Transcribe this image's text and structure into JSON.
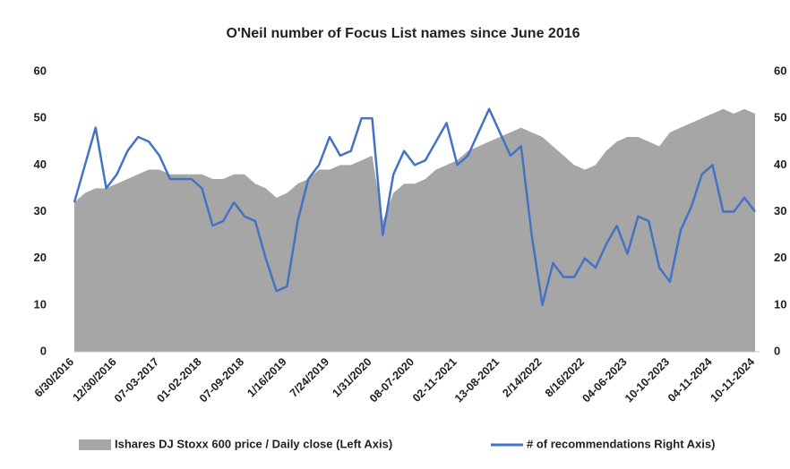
{
  "chart_data": {
    "type": "area-line",
    "title": "O'Neil number of Focus List names since June 2016",
    "categories": [
      "6/30/2016",
      null,
      null,
      null,
      "12/30/2016",
      null,
      null,
      null,
      "07-03-2017",
      null,
      null,
      null,
      "01-02-2018",
      null,
      null,
      null,
      "07-09-2018",
      null,
      null,
      null,
      "1/16/2019",
      null,
      null,
      null,
      "7/24/2019",
      null,
      null,
      null,
      "1/31/2020",
      null,
      null,
      null,
      "08-07-2020",
      null,
      null,
      null,
      "02-11-2021",
      null,
      null,
      null,
      "13-08-2021",
      null,
      null,
      null,
      "2/14/2022",
      null,
      null,
      null,
      "8/16/2022",
      null,
      null,
      null,
      "04-06-2023",
      null,
      null,
      null,
      "10-10-2023",
      null,
      null,
      null,
      "04-11-2024",
      null,
      null,
      null,
      "10-11-2024"
    ],
    "series": [
      {
        "name": "Ishares DJ Stoxx 600 price / Daily close (Left Axis)",
        "type": "area",
        "color": "#a6a6a6",
        "axis": "y",
        "values": [
          32,
          34,
          35,
          35,
          36,
          37,
          38,
          39,
          39,
          38,
          38,
          38,
          38,
          37,
          37,
          38,
          38,
          36,
          35,
          33,
          34,
          36,
          37,
          39,
          39,
          40,
          40,
          41,
          42,
          28,
          34,
          36,
          36,
          37,
          39,
          40,
          41,
          43,
          44,
          45,
          46,
          47,
          48,
          47,
          46,
          44,
          42,
          40,
          39,
          40,
          43,
          45,
          46,
          46,
          45,
          44,
          47,
          48,
          49,
          50,
          51,
          52,
          51,
          52,
          51
        ]
      },
      {
        "name": "# of recommendations Right Axis)",
        "type": "line",
        "color": "#4472c4",
        "axis": "y2",
        "values": [
          32,
          40,
          48,
          35,
          38,
          43,
          46,
          45,
          42,
          37,
          37,
          37,
          35,
          27,
          28,
          32,
          29,
          28,
          20,
          13,
          14,
          28,
          37,
          40,
          46,
          42,
          43,
          50,
          50,
          25,
          38,
          43,
          40,
          41,
          45,
          49,
          40,
          42,
          47,
          52,
          47,
          42,
          44,
          25,
          10,
          19,
          16,
          16,
          20,
          18,
          23,
          27,
          21,
          29,
          28,
          18,
          15,
          26,
          31,
          38,
          40,
          30,
          30,
          33,
          30
        ]
      }
    ],
    "ylim": [
      0,
      60
    ],
    "yticks": [
      0,
      10,
      20,
      30,
      40,
      50,
      60
    ],
    "y2lim": [
      0,
      60
    ],
    "y2ticks": [
      0,
      10,
      20,
      30,
      40,
      50,
      60
    ],
    "legend": "bottom"
  }
}
